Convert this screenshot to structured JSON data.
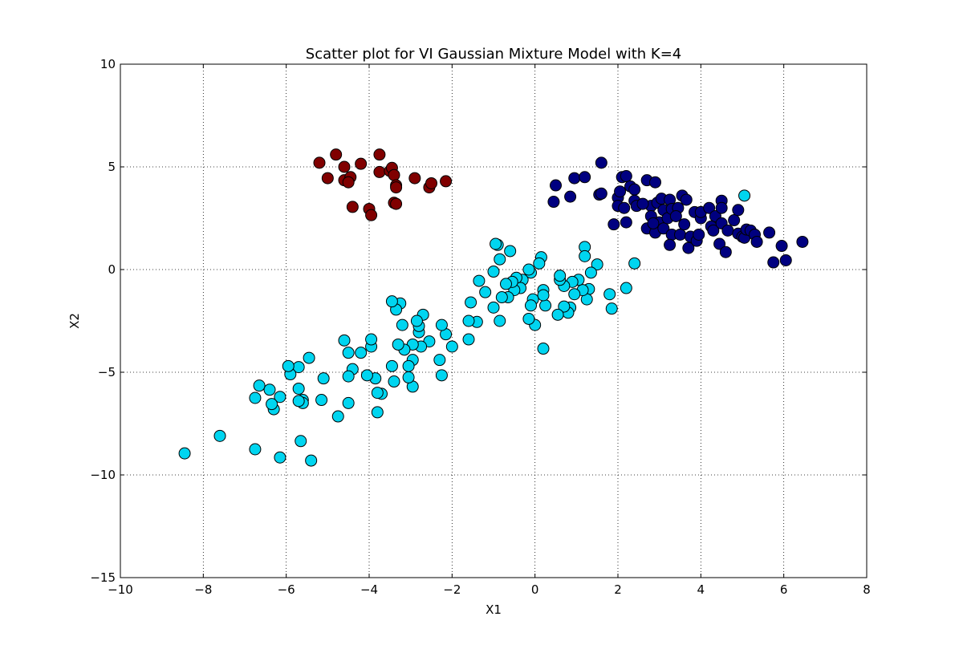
{
  "chart_data": {
    "type": "scatter",
    "title": "Scatter plot for VI Gaussian Mixture Model with K=4",
    "xlabel": "X1",
    "ylabel": "X2",
    "xlim": [
      -10,
      8
    ],
    "ylim": [
      -15,
      10
    ],
    "xticks": [
      -10,
      -8,
      -6,
      -4,
      -2,
      0,
      2,
      4,
      6,
      8
    ],
    "yticks": [
      -15,
      -10,
      -5,
      0,
      5,
      10
    ],
    "x_tick_labels": [
      "−10",
      "−8",
      "−6",
      "−4",
      "−2",
      "0",
      "2",
      "4",
      "6",
      "8"
    ],
    "y_tick_labels": [
      "−15",
      "−10",
      "−5",
      "0",
      "5",
      "10"
    ],
    "grid": true,
    "series": [
      {
        "color": "#800000",
        "points": [
          [
            -5.2,
            5.2
          ],
          [
            -5.0,
            4.45
          ],
          [
            -4.8,
            5.6
          ],
          [
            -4.6,
            5.0
          ],
          [
            -4.6,
            4.35
          ],
          [
            -4.45,
            4.5
          ],
          [
            -4.5,
            4.25
          ],
          [
            -4.4,
            3.05
          ],
          [
            -4.2,
            5.15
          ],
          [
            -4.0,
            2.95
          ],
          [
            -3.95,
            2.65
          ],
          [
            -3.75,
            4.75
          ],
          [
            -3.75,
            5.6
          ],
          [
            -3.5,
            4.8
          ],
          [
            -3.45,
            4.95
          ],
          [
            -3.4,
            4.6
          ],
          [
            -3.35,
            4.1
          ],
          [
            -3.35,
            4.0
          ],
          [
            -3.4,
            3.25
          ],
          [
            -3.35,
            3.2
          ],
          [
            -2.9,
            4.45
          ],
          [
            -2.55,
            4.0
          ],
          [
            -2.5,
            4.2
          ],
          [
            -2.15,
            4.3
          ]
        ]
      },
      {
        "color": "#000080",
        "points": [
          [
            0.5,
            4.1
          ],
          [
            0.45,
            3.3
          ],
          [
            0.85,
            3.55
          ],
          [
            0.95,
            4.45
          ],
          [
            1.2,
            4.5
          ],
          [
            1.55,
            3.65
          ],
          [
            1.6,
            3.7
          ],
          [
            1.6,
            5.2
          ],
          [
            1.9,
            2.2
          ],
          [
            2.0,
            3.5
          ],
          [
            2.05,
            3.8
          ],
          [
            2.1,
            4.5
          ],
          [
            2.2,
            4.55
          ],
          [
            2.0,
            3.1
          ],
          [
            2.15,
            3.0
          ],
          [
            2.2,
            2.3
          ],
          [
            2.3,
            4.05
          ],
          [
            2.4,
            3.9
          ],
          [
            2.4,
            3.35
          ],
          [
            2.45,
            3.1
          ],
          [
            2.7,
            4.35
          ],
          [
            2.7,
            2.0
          ],
          [
            2.8,
            3.1
          ],
          [
            2.8,
            2.6
          ],
          [
            2.9,
            4.25
          ],
          [
            2.9,
            1.8
          ],
          [
            2.95,
            3.25
          ],
          [
            3.0,
            2.3
          ],
          [
            3.05,
            3.45
          ],
          [
            3.1,
            2.9
          ],
          [
            3.1,
            2.0
          ],
          [
            3.2,
            2.5
          ],
          [
            3.25,
            3.4
          ],
          [
            3.3,
            2.95
          ],
          [
            3.3,
            1.7
          ],
          [
            3.25,
            1.2
          ],
          [
            3.45,
            3.0
          ],
          [
            3.5,
            1.7
          ],
          [
            3.55,
            3.6
          ],
          [
            3.6,
            2.2
          ],
          [
            3.65,
            3.4
          ],
          [
            3.7,
            1.05
          ],
          [
            3.75,
            1.6
          ],
          [
            3.85,
            2.8
          ],
          [
            3.9,
            1.4
          ],
          [
            3.95,
            1.7
          ],
          [
            4.0,
            2.5
          ],
          [
            4.0,
            2.8
          ],
          [
            4.2,
            3.0
          ],
          [
            4.25,
            2.1
          ],
          [
            4.3,
            1.9
          ],
          [
            4.35,
            2.6
          ],
          [
            4.45,
            1.25
          ],
          [
            4.5,
            3.35
          ],
          [
            4.5,
            3.0
          ],
          [
            4.5,
            2.25
          ],
          [
            4.6,
            0.85
          ],
          [
            4.65,
            1.9
          ],
          [
            4.8,
            2.4
          ],
          [
            4.9,
            2.9
          ],
          [
            4.9,
            1.75
          ],
          [
            5.0,
            1.6
          ],
          [
            5.05,
            1.55
          ],
          [
            5.1,
            1.95
          ],
          [
            5.2,
            1.9
          ],
          [
            5.3,
            1.7
          ],
          [
            5.35,
            1.35
          ],
          [
            5.65,
            1.8
          ],
          [
            5.75,
            0.35
          ],
          [
            5.95,
            1.15
          ],
          [
            6.05,
            0.45
          ],
          [
            6.45,
            1.35
          ],
          [
            2.6,
            3.2
          ],
          [
            3.4,
            2.6
          ],
          [
            2.85,
            2.25
          ]
        ]
      },
      {
        "color": "#00d5f0",
        "points": [
          [
            5.05,
            3.6
          ],
          [
            2.4,
            0.3
          ],
          [
            2.2,
            -0.9
          ],
          [
            1.85,
            -1.9
          ],
          [
            1.8,
            -1.2
          ],
          [
            1.5,
            0.25
          ],
          [
            1.35,
            -0.15
          ],
          [
            1.3,
            -0.95
          ],
          [
            1.25,
            -1.45
          ],
          [
            1.2,
            1.1
          ],
          [
            1.2,
            0.65
          ],
          [
            1.15,
            -1.0
          ],
          [
            1.05,
            -0.5
          ],
          [
            0.95,
            -1.2
          ],
          [
            0.9,
            -0.6
          ],
          [
            0.85,
            -1.85
          ],
          [
            0.8,
            -2.1
          ],
          [
            0.7,
            -1.8
          ],
          [
            0.7,
            -0.8
          ],
          [
            0.6,
            -0.5
          ],
          [
            0.6,
            -0.3
          ],
          [
            0.55,
            -2.2
          ],
          [
            0.25,
            -1.75
          ],
          [
            0.2,
            -1.0
          ],
          [
            0.2,
            -1.25
          ],
          [
            0.2,
            -3.85
          ],
          [
            0.15,
            0.6
          ],
          [
            0.1,
            0.3
          ],
          [
            0.0,
            -2.7
          ],
          [
            -0.05,
            -1.45
          ],
          [
            -0.1,
            -0.15
          ],
          [
            -0.1,
            -1.75
          ],
          [
            -0.15,
            -2.4
          ],
          [
            -0.15,
            0.0
          ],
          [
            -0.3,
            -0.5
          ],
          [
            -0.35,
            -0.9
          ],
          [
            -0.45,
            -0.4
          ],
          [
            -0.5,
            -1.0
          ],
          [
            -0.55,
            -0.6
          ],
          [
            -0.6,
            0.9
          ],
          [
            -0.65,
            -1.35
          ],
          [
            -0.7,
            -0.7
          ],
          [
            -0.8,
            -1.35
          ],
          [
            -0.85,
            0.5
          ],
          [
            -0.85,
            -2.5
          ],
          [
            -0.9,
            1.2
          ],
          [
            -0.95,
            1.25
          ],
          [
            -1.0,
            -1.85
          ],
          [
            -1.0,
            -0.1
          ],
          [
            -1.2,
            -1.1
          ],
          [
            -1.35,
            -0.55
          ],
          [
            -1.4,
            -2.55
          ],
          [
            -1.55,
            -1.6
          ],
          [
            -1.6,
            -2.5
          ],
          [
            -1.6,
            -3.4
          ],
          [
            -2.0,
            -3.75
          ],
          [
            -2.15,
            -3.15
          ],
          [
            -2.25,
            -2.7
          ],
          [
            -2.25,
            -5.15
          ],
          [
            -2.3,
            -4.4
          ],
          [
            -2.55,
            -3.5
          ],
          [
            -2.7,
            -2.2
          ],
          [
            -2.75,
            -3.75
          ],
          [
            -2.8,
            -3.05
          ],
          [
            -2.8,
            -2.75
          ],
          [
            -2.85,
            -2.5
          ],
          [
            -2.95,
            -4.4
          ],
          [
            -2.95,
            -3.65
          ],
          [
            -2.95,
            -5.7
          ],
          [
            -3.05,
            -5.25
          ],
          [
            -3.05,
            -4.7
          ],
          [
            -3.15,
            -3.9
          ],
          [
            -3.2,
            -2.7
          ],
          [
            -3.25,
            -1.65
          ],
          [
            -3.3,
            -3.65
          ],
          [
            -3.35,
            -1.95
          ],
          [
            -3.4,
            -5.45
          ],
          [
            -3.45,
            -4.7
          ],
          [
            -3.45,
            -1.55
          ],
          [
            -3.7,
            -6.05
          ],
          [
            -3.8,
            -6.0
          ],
          [
            -3.8,
            -6.95
          ],
          [
            -3.85,
            -5.3
          ],
          [
            -3.95,
            -3.75
          ],
          [
            -3.95,
            -3.4
          ],
          [
            -4.05,
            -5.15
          ],
          [
            -4.2,
            -4.05
          ],
          [
            -4.4,
            -4.85
          ],
          [
            -4.5,
            -5.2
          ],
          [
            -4.5,
            -4.05
          ],
          [
            -4.5,
            -6.5
          ],
          [
            -4.6,
            -3.45
          ],
          [
            -4.75,
            -7.15
          ],
          [
            -5.1,
            -5.3
          ],
          [
            -5.15,
            -6.35
          ],
          [
            -5.4,
            -9.3
          ],
          [
            -5.45,
            -4.3
          ],
          [
            -5.6,
            -6.35
          ],
          [
            -5.6,
            -6.5
          ],
          [
            -5.65,
            -8.35
          ],
          [
            -5.7,
            -5.8
          ],
          [
            -5.7,
            -6.4
          ],
          [
            -5.7,
            -4.75
          ],
          [
            -5.9,
            -5.1
          ],
          [
            -5.95,
            -4.7
          ],
          [
            -6.15,
            -9.15
          ],
          [
            -6.15,
            -6.2
          ],
          [
            -6.3,
            -6.8
          ],
          [
            -6.35,
            -6.55
          ],
          [
            -6.4,
            -5.85
          ],
          [
            -6.65,
            -5.65
          ],
          [
            -6.75,
            -6.25
          ],
          [
            -6.75,
            -8.75
          ],
          [
            -7.6,
            -8.1
          ],
          [
            -8.45,
            -8.95
          ]
        ]
      }
    ]
  }
}
